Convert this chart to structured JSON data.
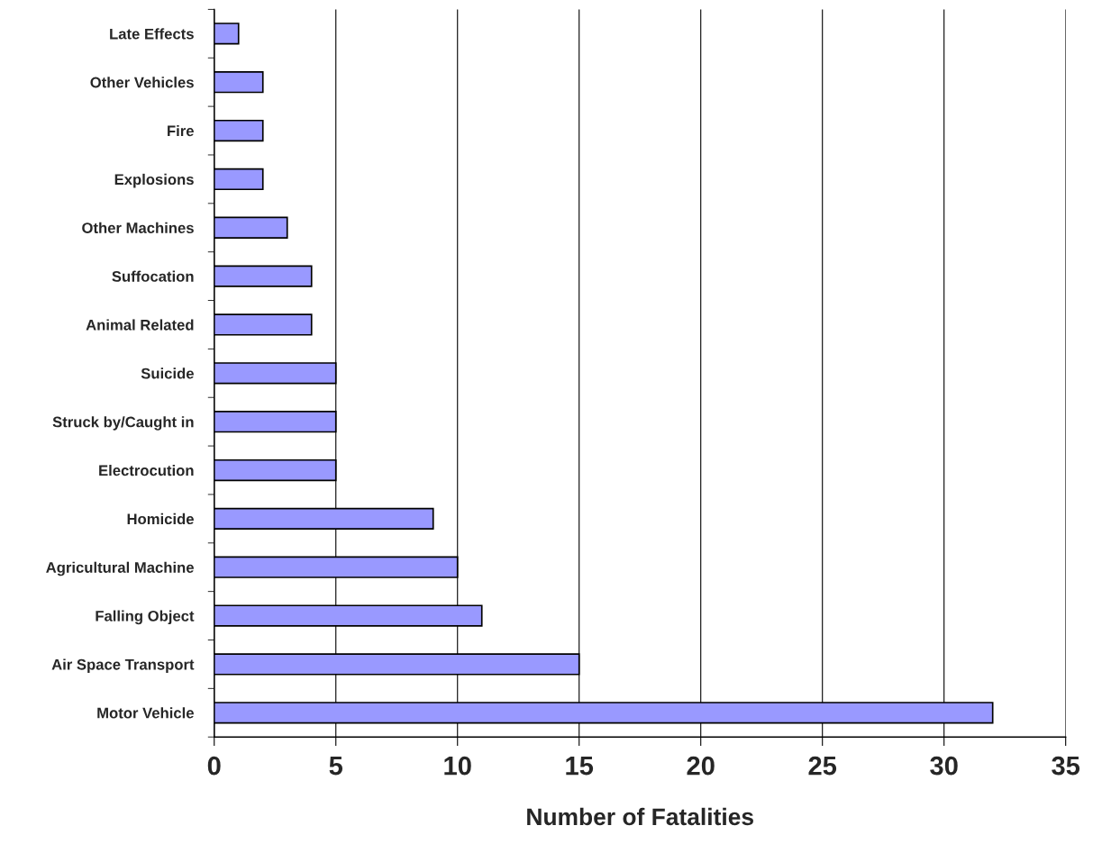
{
  "chart_data": {
    "type": "bar",
    "orientation": "horizontal",
    "xlabel": "Number of Fatalities",
    "categories": [
      "Late Effects",
      "Other Vehicles",
      "Fire",
      "Explosions",
      "Other Machines",
      "Suffocation",
      "Animal Related",
      "Suicide",
      "Struck by/Caught in",
      "Electrocution",
      "Homicide",
      "Agricultural Machine",
      "Falling Object",
      "Air Space Transport",
      "Motor Vehicle"
    ],
    "values": [
      1,
      2,
      2,
      2,
      3,
      4,
      4,
      5,
      5,
      5,
      9,
      10,
      11,
      15,
      32
    ],
    "color": "#9999ff",
    "xlim": [
      0,
      35
    ],
    "xticks": [
      0,
      5,
      10,
      15,
      20,
      25,
      30,
      35
    ],
    "grid": "x",
    "legend": false
  }
}
